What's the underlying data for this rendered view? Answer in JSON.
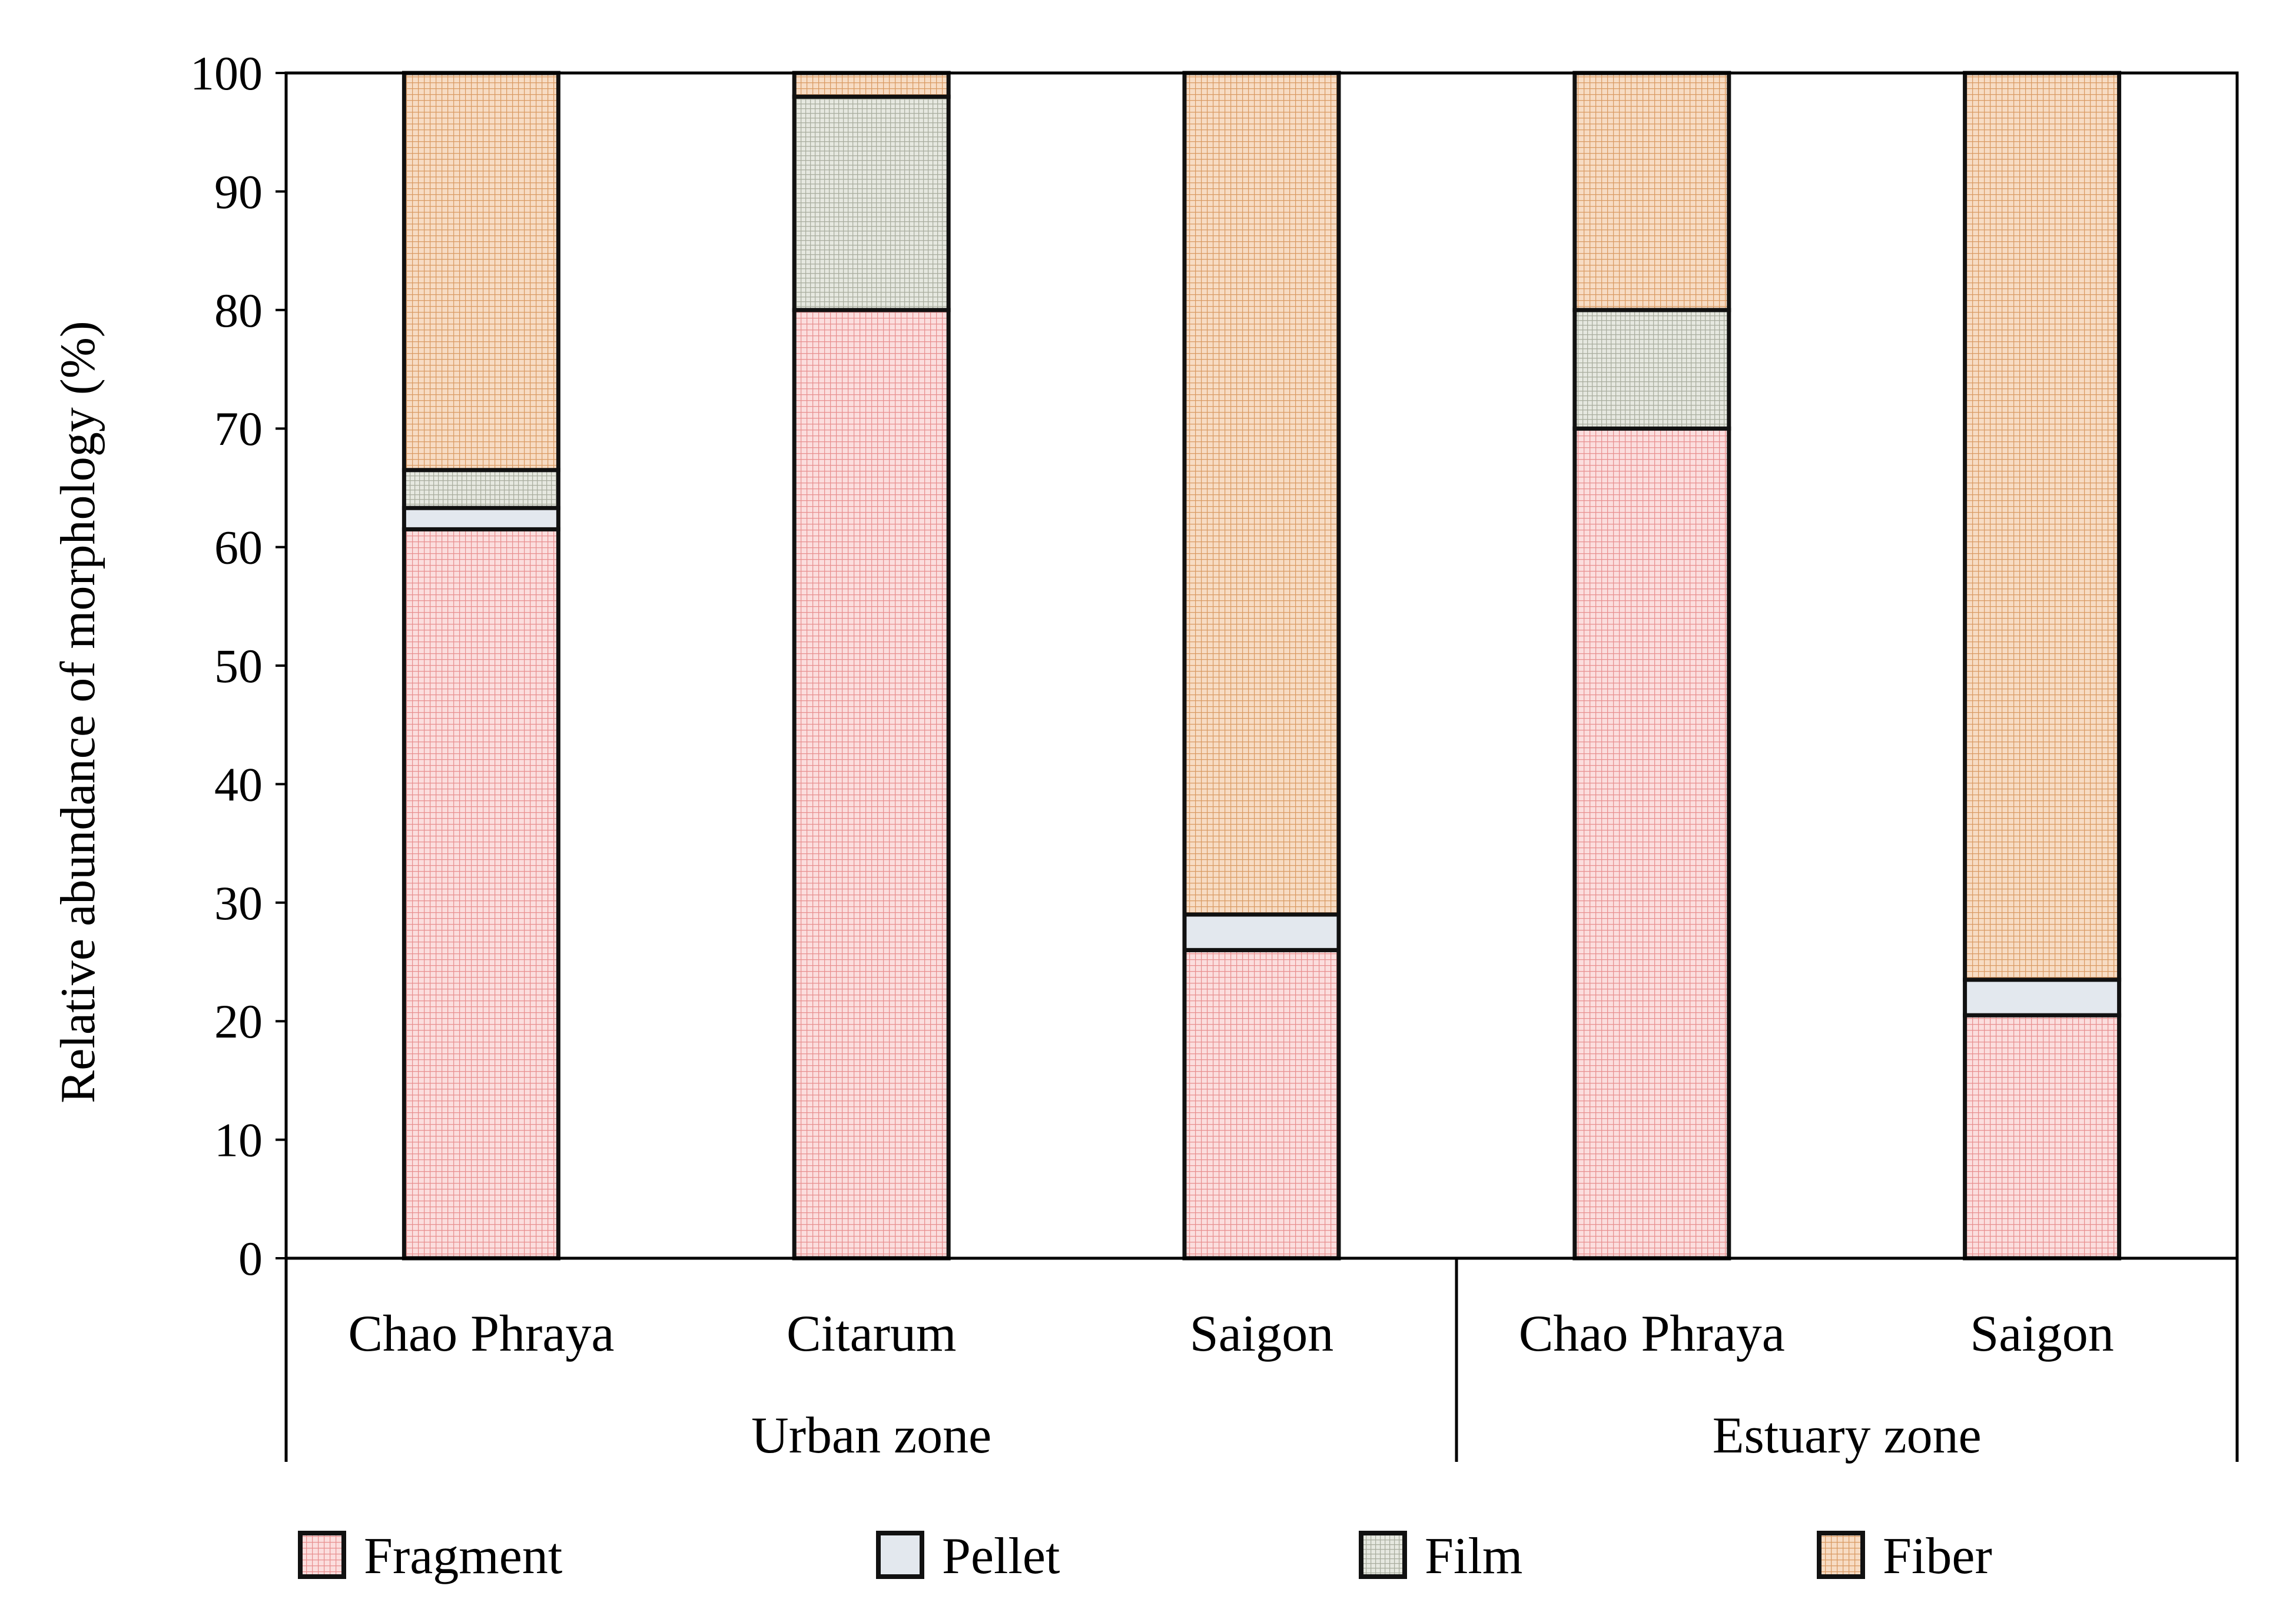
{
  "chart_data": {
    "type": "bar",
    "stacked": true,
    "ylabel": "Relative abundance of morphology (%)",
    "xlabel": "",
    "ylim": [
      0,
      100
    ],
    "yticks": [
      0,
      10,
      20,
      30,
      40,
      50,
      60,
      70,
      80,
      90,
      100
    ],
    "categories": [
      "Chao Phraya",
      "Citarum",
      "Saigon",
      "Chao Phraya",
      "Saigon"
    ],
    "groups": [
      {
        "label": "Urban zone",
        "categories": [
          0,
          1,
          2
        ]
      },
      {
        "label": "Estuary zone",
        "categories": [
          3,
          4
        ]
      }
    ],
    "series": [
      {
        "name": "Fragment",
        "color": "#f7c9c9",
        "pattern": "fine-grid",
        "values": [
          61.5,
          80,
          26,
          70,
          20.5
        ]
      },
      {
        "name": "Pellet",
        "color": "#e3e8ee",
        "pattern": "solid",
        "values": [
          1.8,
          0,
          3,
          0,
          3
        ]
      },
      {
        "name": "Film",
        "color": "#d7dbd0",
        "pattern": "fine-grid",
        "values": [
          3.2,
          18,
          0,
          10,
          0
        ]
      },
      {
        "name": "Fiber",
        "color": "#f1c9a4",
        "pattern": "fine-grid",
        "values": [
          33.5,
          2,
          71,
          20,
          76.5
        ]
      }
    ],
    "legend_position": "bottom",
    "grid": false
  }
}
